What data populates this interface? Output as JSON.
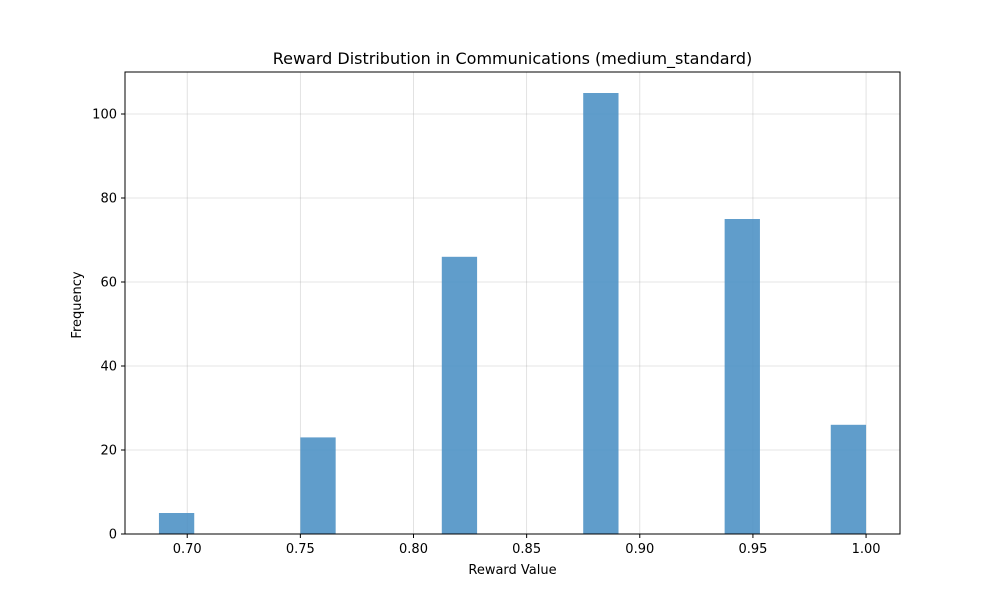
{
  "chart_data": {
    "type": "bar",
    "title": "Reward Distribution in Communications (medium_standard)",
    "xlabel": "Reward Value",
    "ylabel": "Frequency",
    "xlim": [
      0.6725,
      1.015
    ],
    "ylim": [
      0,
      110
    ],
    "x_ticks": [
      0.7,
      0.75,
      0.8,
      0.85,
      0.9,
      0.95,
      1.0
    ],
    "x_tick_labels": [
      "0.70",
      "0.75",
      "0.80",
      "0.85",
      "0.90",
      "0.95",
      "1.00"
    ],
    "y_ticks": [
      0,
      20,
      40,
      60,
      80,
      100
    ],
    "y_tick_labels": [
      "0",
      "20",
      "40",
      "60",
      "80",
      "100"
    ],
    "grid": true,
    "bar_color": "#4a8fc4",
    "bars": [
      {
        "x_start": 0.6875,
        "x_end": 0.7031,
        "value": 5
      },
      {
        "x_start": 0.75,
        "x_end": 0.7656,
        "value": 23
      },
      {
        "x_start": 0.8125,
        "x_end": 0.8281,
        "value": 66
      },
      {
        "x_start": 0.875,
        "x_end": 0.8906,
        "value": 105
      },
      {
        "x_start": 0.9375,
        "x_end": 0.9531,
        "value": 75
      },
      {
        "x_start": 0.9844,
        "x_end": 1.0,
        "value": 26
      }
    ]
  }
}
